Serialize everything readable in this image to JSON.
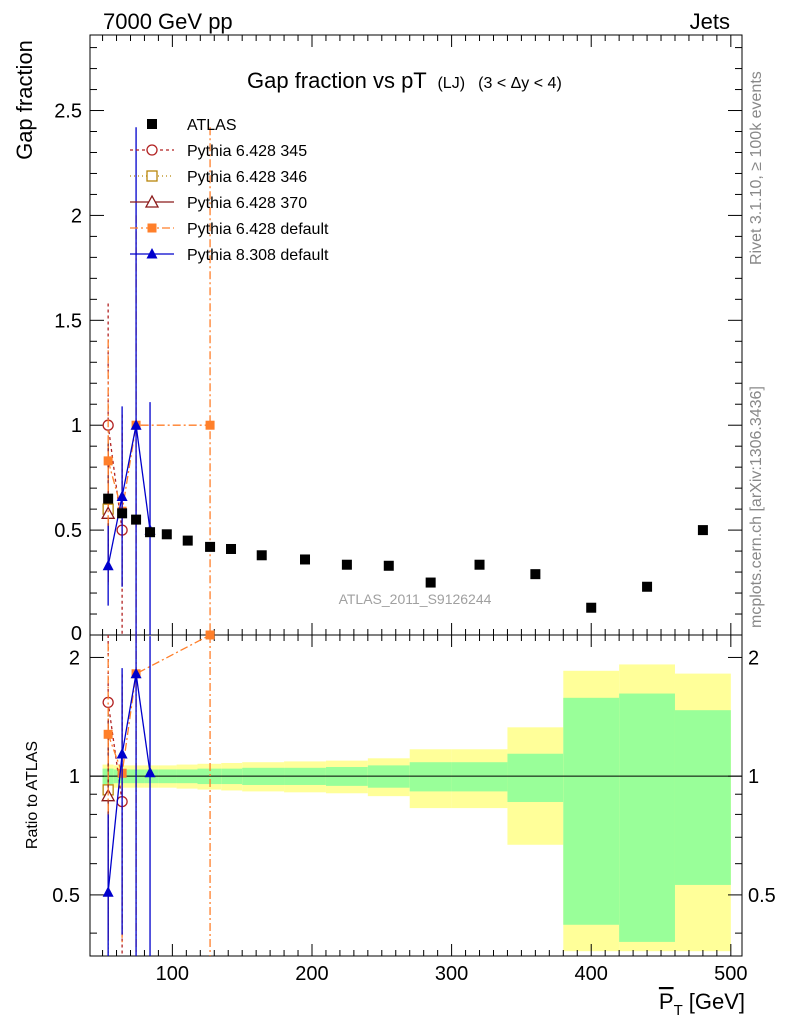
{
  "header": {
    "left": "7000 GeV pp",
    "right": "Jets"
  },
  "side_text": {
    "rivet": "Rivet 3.1.10, ≥ 100k events",
    "mcplots": "mcplots.cern.ch [arXiv:1306.3436]"
  },
  "watermark": "ATLAS_2011_S9126244",
  "chart_data": {
    "type": "scatter",
    "title": "Gap fraction vs pT",
    "title_sub": "(LJ)",
    "title_cond": "(3 < Δy < 4)",
    "ylabel": "Gap fraction",
    "ratio_ylabel": "Ratio to ATLAS",
    "xlabel": "P",
    "xlabel_sub": "T",
    "xlabel_unit": "[GeV]",
    "xlim": [
      41,
      508
    ],
    "ylim": [
      0,
      2.86
    ],
    "ratio_ylim": [
      0.35,
      2.28
    ],
    "x_ticks": [
      "100",
      "200",
      "300",
      "400",
      "500"
    ],
    "y_ticks": [
      "0",
      "0.5",
      "1",
      "1.5",
      "2",
      "2.5"
    ],
    "ratio_ticks": [
      "0.5",
      "1",
      "2"
    ],
    "data": {
      "name": "ATLAS",
      "points": [
        {
          "x": 54,
          "y": 0.65,
          "xlo": 50,
          "xhi": 58,
          "r_stat": 0.045,
          "r_tot": 0.07
        },
        {
          "x": 64,
          "y": 0.58,
          "xlo": 58,
          "xhi": 70,
          "r_stat": 0.04,
          "r_tot": 0.065
        },
        {
          "x": 74,
          "y": 0.55,
          "xlo": 70,
          "xhi": 80,
          "r_stat": 0.04,
          "r_tot": 0.065
        },
        {
          "x": 84,
          "y": 0.49,
          "xlo": 80,
          "xhi": 90,
          "r_stat": 0.04,
          "r_tot": 0.065
        },
        {
          "x": 96,
          "y": 0.48,
          "xlo": 90,
          "xhi": 103,
          "r_stat": 0.04,
          "r_tot": 0.065
        },
        {
          "x": 111,
          "y": 0.45,
          "xlo": 103,
          "xhi": 118,
          "r_stat": 0.04,
          "r_tot": 0.07
        },
        {
          "x": 127,
          "y": 0.42,
          "xlo": 118,
          "xhi": 135,
          "r_stat": 0.045,
          "r_tot": 0.075
        },
        {
          "x": 142,
          "y": 0.41,
          "xlo": 135,
          "xhi": 150,
          "r_stat": 0.045,
          "r_tot": 0.08
        },
        {
          "x": 164,
          "y": 0.38,
          "xlo": 150,
          "xhi": 180,
          "r_stat": 0.05,
          "r_tot": 0.085
        },
        {
          "x": 195,
          "y": 0.36,
          "xlo": 180,
          "xhi": 210,
          "r_stat": 0.05,
          "r_tot": 0.09
        },
        {
          "x": 225,
          "y": 0.335,
          "xlo": 210,
          "xhi": 240,
          "r_stat": 0.055,
          "r_tot": 0.095
        },
        {
          "x": 255,
          "y": 0.33,
          "xlo": 240,
          "xhi": 270,
          "r_stat": 0.065,
          "r_tot": 0.11
        },
        {
          "x": 285,
          "y": 0.25,
          "xlo": 270,
          "xhi": 300,
          "r_stat": 0.085,
          "r_tot": 0.17
        },
        {
          "x": 320,
          "y": 0.335,
          "xlo": 300,
          "xhi": 340,
          "r_stat": 0.085,
          "r_tot": 0.17
        },
        {
          "x": 360,
          "y": 0.29,
          "xlo": 340,
          "xhi": 380,
          "r_stat": 0.14,
          "r_tot": 0.33
        },
        {
          "x": 400,
          "y": 0.13,
          "xlo": 380,
          "xhi": 420,
          "r_stat": 0.58,
          "r_tot": 0.85
        },
        {
          "x": 440,
          "y": 0.23,
          "xlo": 420,
          "xhi": 460,
          "r_stat": 0.62,
          "r_tot": 0.92
        },
        {
          "x": 480,
          "y": 0.5,
          "xlo": 460,
          "xhi": 500,
          "r_stat": 0.47,
          "r_tot": 0.82
        }
      ]
    },
    "series": [
      {
        "name": "Pythia 6.428 345",
        "color": "#b22222",
        "marker": "circle-open",
        "dash": "3,3",
        "points": [
          {
            "x": 54,
            "y": 1.0,
            "ylo": 0.42,
            "yhi": 1.58
          },
          {
            "x": 64,
            "y": 0.5,
            "ylo": -0.05,
            "yhi": 1.05
          }
        ]
      },
      {
        "name": "Pythia 6.428 346",
        "color": "#b8860b",
        "marker": "square-open",
        "dash": "1,3",
        "points": [
          {
            "x": 54,
            "y": 0.6,
            "ylo": 0.23,
            "yhi": 0.97
          }
        ]
      },
      {
        "name": "Pythia 6.428 370",
        "color": "#8b1a1a",
        "marker": "triangle-open",
        "dash": "",
        "points": [
          {
            "x": 54,
            "y": 0.58,
            "ylo": 0.25,
            "yhi": 0.91
          }
        ]
      },
      {
        "name": "Pythia 6.428 default",
        "color": "#ff7f2a",
        "marker": "square-filled",
        "dash": "8,3,2,3",
        "points": [
          {
            "x": 54,
            "y": 0.83,
            "ylo": 0.25,
            "yhi": 1.41
          },
          {
            "x": 64,
            "y": 0.59,
            "ylo": 0.22,
            "yhi": 0.96
          },
          {
            "x": 74,
            "y": 1.0,
            "ylo": 0.0,
            "yhi": 2.0
          },
          {
            "x": 127,
            "y": 1.0,
            "ylo": -0.5,
            "yhi": 2.42
          }
        ]
      },
      {
        "name": "Pythia 8.308 default",
        "color": "#0000cc",
        "marker": "triangle-filled",
        "dash": "",
        "points": [
          {
            "x": 54,
            "y": 0.33,
            "ylo": 0.14,
            "yhi": 0.52
          },
          {
            "x": 64,
            "y": 0.66,
            "ylo": 0.23,
            "yhi": 1.09
          },
          {
            "x": 74,
            "y": 1.0,
            "ylo": -0.5,
            "yhi": 2.42
          },
          {
            "x": 84,
            "y": 0.5,
            "ylo": -0.11,
            "yhi": 1.11
          }
        ]
      }
    ],
    "grid": false,
    "legend_position": "top-left"
  }
}
